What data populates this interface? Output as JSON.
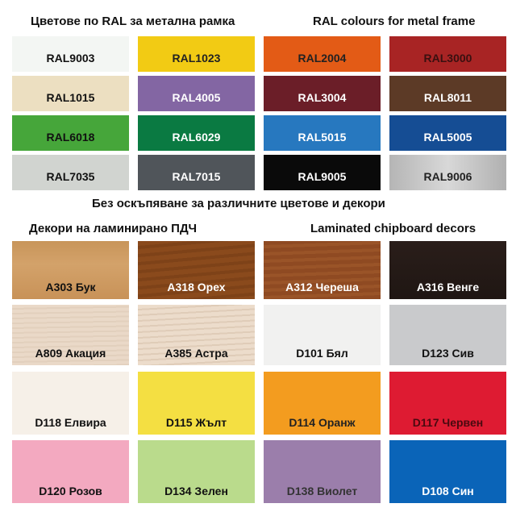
{
  "headings": {
    "ral_bg": "Цветове по RAL за метална рамка",
    "ral_en": "RAL colours for metal frame",
    "note": "Без оскъпяване за различните цветове и декори",
    "decor_bg": "Декори на ламинирано ПДЧ",
    "decor_en": "Laminated chipboard decors"
  },
  "ral": [
    {
      "label": "RAL9003",
      "color": "#f3f6f3",
      "text": "#111"
    },
    {
      "label": "RAL1023",
      "color": "#f2cb14",
      "text": "#222"
    },
    {
      "label": "RAL2004",
      "color": "#e35b16",
      "text": "#222"
    },
    {
      "label": "RAL3000",
      "color": "#a82424",
      "text": "#3a1010"
    },
    {
      "label": "RAL1015",
      "color": "#ecdfc1",
      "text": "#111"
    },
    {
      "label": "RAL4005",
      "color": "#8366a3",
      "text": "#fff"
    },
    {
      "label": "RAL3004",
      "color": "#6b1e28",
      "text": "#fff"
    },
    {
      "label": "RAL8011",
      "color": "#5c3a26",
      "text": "#fff"
    },
    {
      "label": "RAL6018",
      "color": "#46a63a",
      "text": "#111"
    },
    {
      "label": "RAL6029",
      "color": "#0a7a42",
      "text": "#fff"
    },
    {
      "label": "RAL5015",
      "color": "#2778bf",
      "text": "#fff"
    },
    {
      "label": "RAL5005",
      "color": "#154d94",
      "text": "#fff"
    },
    {
      "label": "RAL7035",
      "color": "#d1d4d0",
      "text": "#111"
    },
    {
      "label": "RAL7015",
      "color": "#50555a",
      "text": "#fff"
    },
    {
      "label": "RAL9005",
      "color": "#0a0a0a",
      "text": "#fff"
    },
    {
      "label": "RAL9006",
      "color": "#c0c0c0",
      "text": "#222"
    }
  ],
  "decors": [
    {
      "label": "A303 Бук",
      "color": "#cc995f",
      "text": "#111"
    },
    {
      "label": "A318 Орех",
      "color": "#844619",
      "text": "#fff"
    },
    {
      "label": "A312 Череша",
      "color": "#944f25",
      "text": "#fff"
    },
    {
      "label": "A316 Венге",
      "color": "#251a16",
      "text": "#fff"
    },
    {
      "label": "A809 Акация",
      "color": "#e7d6c5",
      "text": "#111"
    },
    {
      "label": "A385 Астра",
      "color": "#e7d7c5",
      "text": "#111"
    },
    {
      "label": "D101 Бял",
      "color": "#f1f1f0",
      "text": "#111"
    },
    {
      "label": "D123 Сив",
      "color": "#c9cacc",
      "text": "#111"
    },
    {
      "label": "D118 Елвира",
      "color": "#f6f0e8",
      "text": "#111"
    },
    {
      "label": "D115 Жълт",
      "color": "#f4df42",
      "text": "#111"
    },
    {
      "label": "D114 Оранж",
      "color": "#f39c1f",
      "text": "#222"
    },
    {
      "label": "D117 Червен",
      "color": "#de1b32",
      "text": "#4a0a10"
    },
    {
      "label": "D120 Розов",
      "color": "#f3a9c0",
      "text": "#111"
    },
    {
      "label": "D134 Зелен",
      "color": "#badb8c",
      "text": "#111"
    },
    {
      "label": "D138 Виолет",
      "color": "#9b7eab",
      "text": "#333"
    },
    {
      "label": "D108 Син",
      "color": "#0a64b8",
      "text": "#fff"
    }
  ]
}
